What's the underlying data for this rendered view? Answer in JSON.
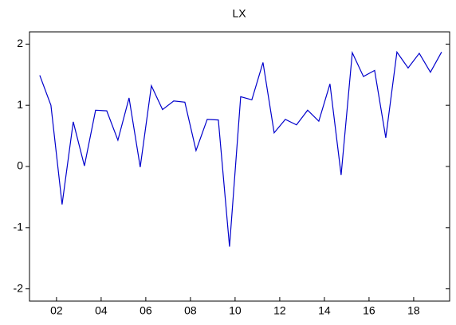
{
  "chart_data": {
    "type": "line",
    "title": "LX",
    "x": [
      2001.75,
      2002.25,
      2002.75,
      2003.25,
      2003.75,
      2004.25,
      2004.75,
      2005.25,
      2005.75,
      2006.25,
      2006.75,
      2007.25,
      2007.75,
      2008.25,
      2008.75,
      2009.25,
      2009.75,
      2010.25,
      2010.75,
      2011.25,
      2011.75,
      2012.25,
      2012.75,
      2013.25,
      2013.75,
      2014.25,
      2014.75,
      2015.25,
      2015.75,
      2016.25,
      2016.75,
      2017.25,
      2017.75,
      2018.25,
      2018.75,
      2019.25,
      2019.75
    ],
    "series": [
      {
        "name": "LX",
        "color": "#0000cc",
        "values": [
          1.49,
          1.0,
          -0.62,
          0.73,
          0.01,
          0.92,
          0.91,
          0.43,
          1.12,
          -0.01,
          1.32,
          0.93,
          1.07,
          1.05,
          0.26,
          0.77,
          0.76,
          -1.31,
          1.14,
          1.09,
          1.7,
          0.55,
          0.77,
          0.68,
          0.92,
          0.74,
          1.35,
          -0.14,
          1.86,
          1.47,
          1.57,
          0.47,
          1.87,
          1.61,
          1.85,
          1.54,
          1.87
        ]
      }
    ],
    "xlim": [
      2001.29,
      2020.11
    ],
    "xticks": [
      {
        "value": 2002.5,
        "label": "02"
      },
      {
        "value": 2004.5,
        "label": "04"
      },
      {
        "value": 2006.5,
        "label": "06"
      },
      {
        "value": 2008.5,
        "label": "08"
      },
      {
        "value": 2010.5,
        "label": "10"
      },
      {
        "value": 2012.5,
        "label": "12"
      },
      {
        "value": 2014.5,
        "label": "14"
      },
      {
        "value": 2016.5,
        "label": "16"
      },
      {
        "value": 2018.5,
        "label": "18"
      }
    ],
    "ylim": [
      -2.2,
      2.2
    ],
    "yticks": [
      -2,
      -1,
      0,
      1,
      2
    ],
    "grid": false
  }
}
